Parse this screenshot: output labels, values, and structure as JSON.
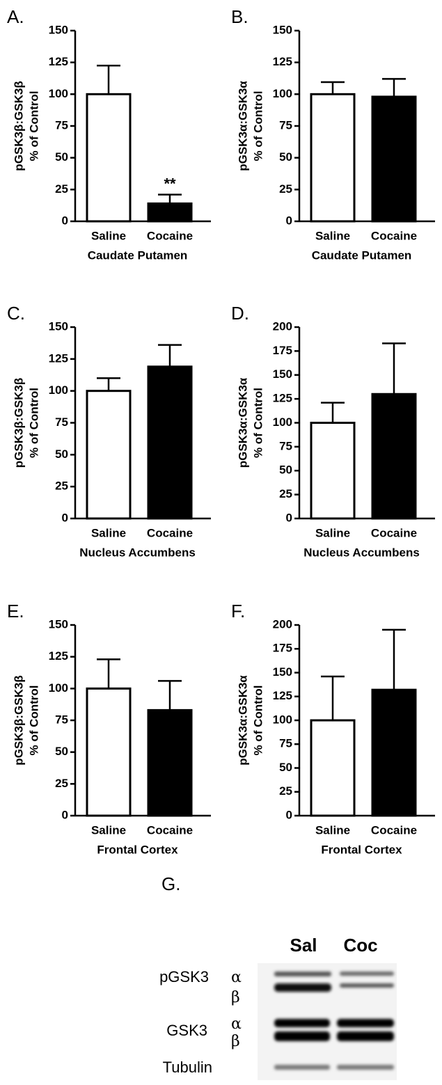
{
  "chart_data": [
    {
      "type": "bar",
      "panel": "A.",
      "ylabel": [
        "pGSK3β:GSK3β",
        "% of Control"
      ],
      "xlabel": "Caudate Putamen",
      "categories": [
        "Saline",
        "Cocaine"
      ],
      "values": [
        100,
        14
      ],
      "errors": [
        22.5,
        7
      ],
      "colors": [
        "#ffffff",
        "#000000"
      ],
      "annotation": "**",
      "ylim": [
        0,
        150
      ],
      "yticks": [
        0,
        25,
        50,
        75,
        100,
        125,
        150
      ]
    },
    {
      "type": "bar",
      "panel": "B.",
      "ylabel": [
        "pGSK3α:GSK3α",
        "% of Control"
      ],
      "xlabel": "Caudate Putamen",
      "categories": [
        "Saline",
        "Cocaine"
      ],
      "values": [
        100,
        98
      ],
      "errors": [
        9.5,
        14
      ],
      "colors": [
        "#ffffff",
        "#000000"
      ],
      "ylim": [
        0,
        150
      ],
      "yticks": [
        0,
        25,
        50,
        75,
        100,
        125,
        150
      ]
    },
    {
      "type": "bar",
      "panel": "C.",
      "ylabel": [
        "pGSK3β:GSK3β",
        "% of Control"
      ],
      "xlabel": "Nucleus Accumbens",
      "categories": [
        "Saline",
        "Cocaine"
      ],
      "values": [
        100,
        119
      ],
      "errors": [
        10,
        17
      ],
      "colors": [
        "#ffffff",
        "#000000"
      ],
      "ylim": [
        0,
        150
      ],
      "yticks": [
        0,
        25,
        50,
        75,
        100,
        125,
        150
      ]
    },
    {
      "type": "bar",
      "panel": "D.",
      "ylabel": [
        "pGSK3α:GSK3α",
        "% of Control"
      ],
      "xlabel": "Nucleus Accumbens",
      "categories": [
        "Saline",
        "Cocaine"
      ],
      "values": [
        100,
        130
      ],
      "errors": [
        21,
        53
      ],
      "colors": [
        "#ffffff",
        "#000000"
      ],
      "ylim": [
        0,
        200
      ],
      "yticks": [
        0,
        25,
        50,
        75,
        100,
        125,
        150,
        175,
        200
      ]
    },
    {
      "type": "bar",
      "panel": "E.",
      "ylabel": [
        "pGSK3β:GSK3β",
        "% of Control"
      ],
      "xlabel": "Frontal Cortex",
      "categories": [
        "Saline",
        "Cocaine"
      ],
      "values": [
        100,
        83
      ],
      "errors": [
        23,
        23
      ],
      "colors": [
        "#ffffff",
        "#000000"
      ],
      "ylim": [
        0,
        150
      ],
      "yticks": [
        0,
        25,
        50,
        75,
        100,
        125,
        150
      ]
    },
    {
      "type": "bar",
      "panel": "F.",
      "ylabel": [
        "pGSK3α:GSK3α",
        "% of Control"
      ],
      "xlabel": "Frontal Cortex",
      "categories": [
        "Saline",
        "Cocaine"
      ],
      "values": [
        100,
        132
      ],
      "errors": [
        46,
        63
      ],
      "colors": [
        "#ffffff",
        "#000000"
      ],
      "ylim": [
        0,
        200
      ],
      "yticks": [
        0,
        25,
        50,
        75,
        100,
        125,
        150,
        175,
        200
      ]
    }
  ],
  "blot": {
    "panel": "G.",
    "lanes": [
      "Sal",
      "Coc"
    ],
    "rows": [
      {
        "label": "pGSK3",
        "isoforms": [
          "α",
          "β"
        ]
      },
      {
        "label": "GSK3",
        "isoforms": [
          "α",
          "β"
        ]
      },
      {
        "label": "Tubulin"
      }
    ]
  }
}
